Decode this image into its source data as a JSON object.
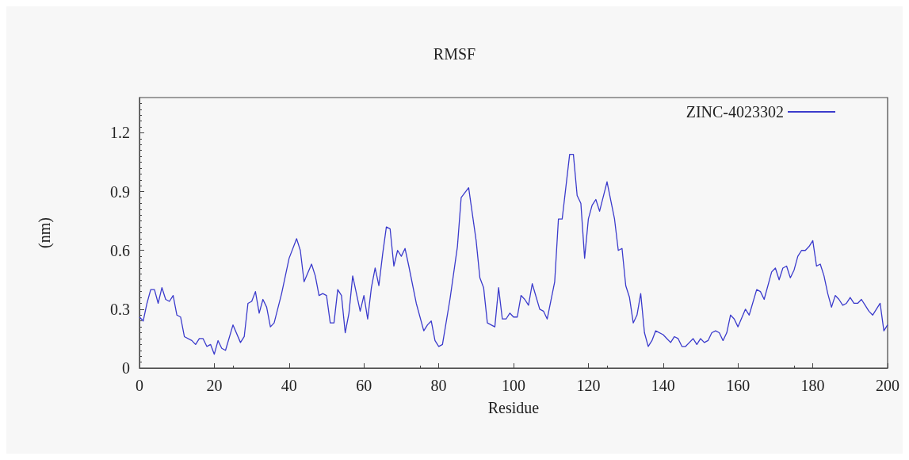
{
  "chart_data": {
    "type": "line",
    "title": "RMSF",
    "xlabel": "Residue",
    "ylabel": "(nm)",
    "xlim": [
      0,
      200
    ],
    "xticks": [
      0,
      20,
      40,
      60,
      80,
      100,
      120,
      140,
      160,
      180,
      200
    ],
    "ylim": [
      0,
      1.38
    ],
    "yticks": [
      0,
      0.3,
      0.6,
      0.9,
      1.2
    ],
    "grid": false,
    "legend": "top right",
    "marker": "none",
    "line_style": "solid",
    "series": [
      {
        "name": "ZINC-4023302",
        "color": "#3b3bcc",
        "x": [
          0,
          1,
          2,
          3,
          4,
          5,
          6,
          7,
          8,
          9,
          10,
          11,
          12,
          14,
          15,
          16,
          17,
          18,
          19,
          20,
          21,
          22,
          23,
          25,
          27,
          28,
          29,
          30,
          31,
          32,
          33,
          34,
          35,
          36,
          38,
          40,
          42,
          43,
          44,
          46,
          47,
          48,
          49,
          50,
          51,
          52,
          53,
          54,
          55,
          56,
          57,
          58,
          59,
          60,
          61,
          62,
          63,
          64,
          65,
          66,
          67,
          68,
          69,
          70,
          71,
          72,
          74,
          76,
          77,
          78,
          79,
          80,
          81,
          83,
          85,
          86,
          88,
          90,
          91,
          92,
          93,
          95,
          96,
          97,
          98,
          99,
          100,
          101,
          102,
          103,
          104,
          105,
          107,
          108,
          109,
          111,
          112,
          113,
          115,
          116,
          117,
          118,
          119,
          120,
          121,
          122,
          123,
          125,
          127,
          128,
          129,
          130,
          131,
          132,
          133,
          134,
          135,
          136,
          137,
          138,
          140,
          141,
          142,
          143,
          144,
          145,
          146,
          147,
          148,
          149,
          150,
          151,
          152,
          153,
          154,
          155,
          156,
          157,
          158,
          159,
          160,
          162,
          163,
          165,
          166,
          167,
          169,
          170,
          171,
          172,
          173,
          174,
          175,
          176,
          177,
          178,
          179,
          180,
          181,
          182,
          183,
          184,
          185,
          186,
          187,
          188,
          189,
          190,
          191,
          192,
          193,
          194,
          195,
          196,
          197,
          198,
          199,
          200
        ],
        "values": [
          0.26,
          0.24,
          0.33,
          0.4,
          0.4,
          0.33,
          0.41,
          0.35,
          0.34,
          0.37,
          0.27,
          0.26,
          0.16,
          0.14,
          0.12,
          0.15,
          0.15,
          0.11,
          0.12,
          0.07,
          0.14,
          0.1,
          0.09,
          0.22,
          0.13,
          0.16,
          0.33,
          0.34,
          0.39,
          0.28,
          0.35,
          0.31,
          0.21,
          0.23,
          0.38,
          0.56,
          0.66,
          0.6,
          0.44,
          0.53,
          0.47,
          0.37,
          0.38,
          0.37,
          0.23,
          0.23,
          0.4,
          0.37,
          0.18,
          0.28,
          0.47,
          0.38,
          0.29,
          0.37,
          0.25,
          0.41,
          0.51,
          0.42,
          0.58,
          0.72,
          0.71,
          0.52,
          0.6,
          0.57,
          0.61,
          0.52,
          0.33,
          0.19,
          0.22,
          0.24,
          0.14,
          0.11,
          0.12,
          0.35,
          0.62,
          0.87,
          0.92,
          0.65,
          0.46,
          0.41,
          0.23,
          0.21,
          0.41,
          0.25,
          0.25,
          0.28,
          0.26,
          0.26,
          0.37,
          0.35,
          0.32,
          0.43,
          0.3,
          0.29,
          0.25,
          0.44,
          0.76,
          0.76,
          1.09,
          1.09,
          0.88,
          0.84,
          0.56,
          0.76,
          0.83,
          0.86,
          0.8,
          0.95,
          0.76,
          0.6,
          0.61,
          0.42,
          0.36,
          0.23,
          0.27,
          0.38,
          0.18,
          0.11,
          0.14,
          0.19,
          0.17,
          0.15,
          0.13,
          0.16,
          0.15,
          0.11,
          0.11,
          0.13,
          0.15,
          0.12,
          0.15,
          0.13,
          0.14,
          0.18,
          0.19,
          0.18,
          0.14,
          0.18,
          0.27,
          0.25,
          0.21,
          0.3,
          0.27,
          0.4,
          0.39,
          0.35,
          0.49,
          0.51,
          0.45,
          0.51,
          0.52,
          0.46,
          0.5,
          0.57,
          0.6,
          0.6,
          0.62,
          0.65,
          0.52,
          0.53,
          0.47,
          0.38,
          0.31,
          0.37,
          0.35,
          0.32,
          0.33,
          0.36,
          0.33,
          0.33,
          0.35,
          0.32,
          0.29,
          0.27,
          0.3,
          0.33,
          0.19,
          0.22
        ]
      }
    ]
  }
}
